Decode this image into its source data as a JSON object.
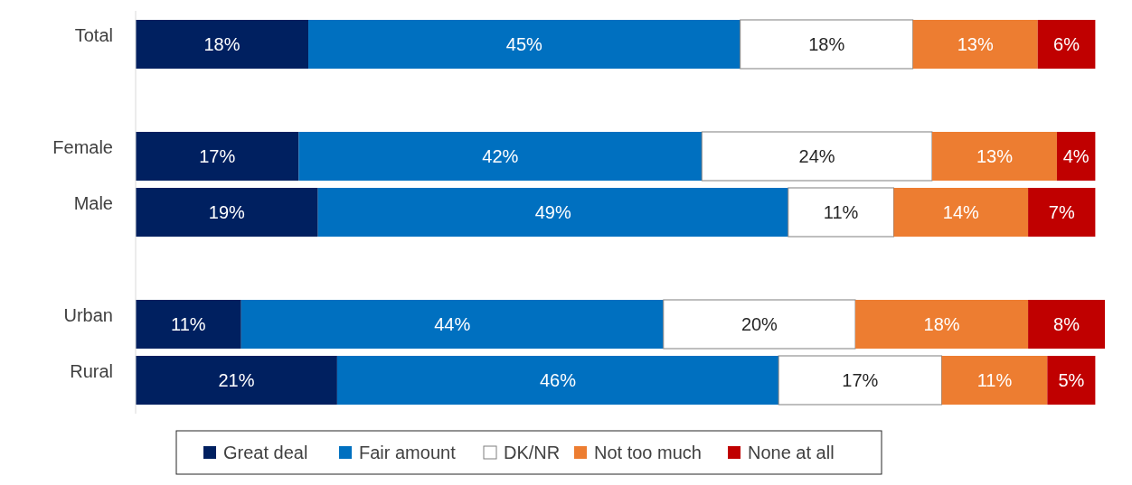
{
  "chart_data": {
    "type": "bar",
    "orientation": "horizontal",
    "stacked": true,
    "legend": "bottom",
    "categories": [
      "Total",
      null,
      "Female",
      "Male",
      null,
      "Urban",
      "Rural"
    ],
    "series": [
      {
        "name": "Great deal",
        "color": "#002060",
        "values": [
          18,
          null,
          17,
          19,
          null,
          11,
          21
        ],
        "value_labels": [
          "18%",
          null,
          "17%",
          "19%",
          null,
          "11%",
          "21%"
        ]
      },
      {
        "name": "Fair amount",
        "color": "#0070c0",
        "values": [
          45,
          null,
          42,
          49,
          null,
          44,
          46
        ],
        "value_labels": [
          "45%",
          null,
          "42%",
          "49%",
          null,
          "44%",
          "46%"
        ]
      },
      {
        "name": "DK/NR",
        "color": "#ffffff",
        "values": [
          18,
          null,
          24,
          11,
          null,
          20,
          17
        ],
        "value_labels": [
          "18%",
          null,
          "24%",
          "11%",
          null,
          "20%",
          "17%"
        ]
      },
      {
        "name": "Not too much",
        "color": "#ed7d31",
        "values": [
          13,
          null,
          13,
          14,
          null,
          18,
          11
        ],
        "value_labels": [
          "13%",
          null,
          "13%",
          "14%",
          null,
          "18%",
          "11%"
        ]
      },
      {
        "name": "None at all",
        "color": "#c00000",
        "values": [
          6,
          null,
          4,
          7,
          null,
          8,
          5
        ],
        "value_labels": [
          "6%",
          null,
          "4%",
          "7%",
          null,
          "8%",
          "5%"
        ]
      }
    ]
  }
}
